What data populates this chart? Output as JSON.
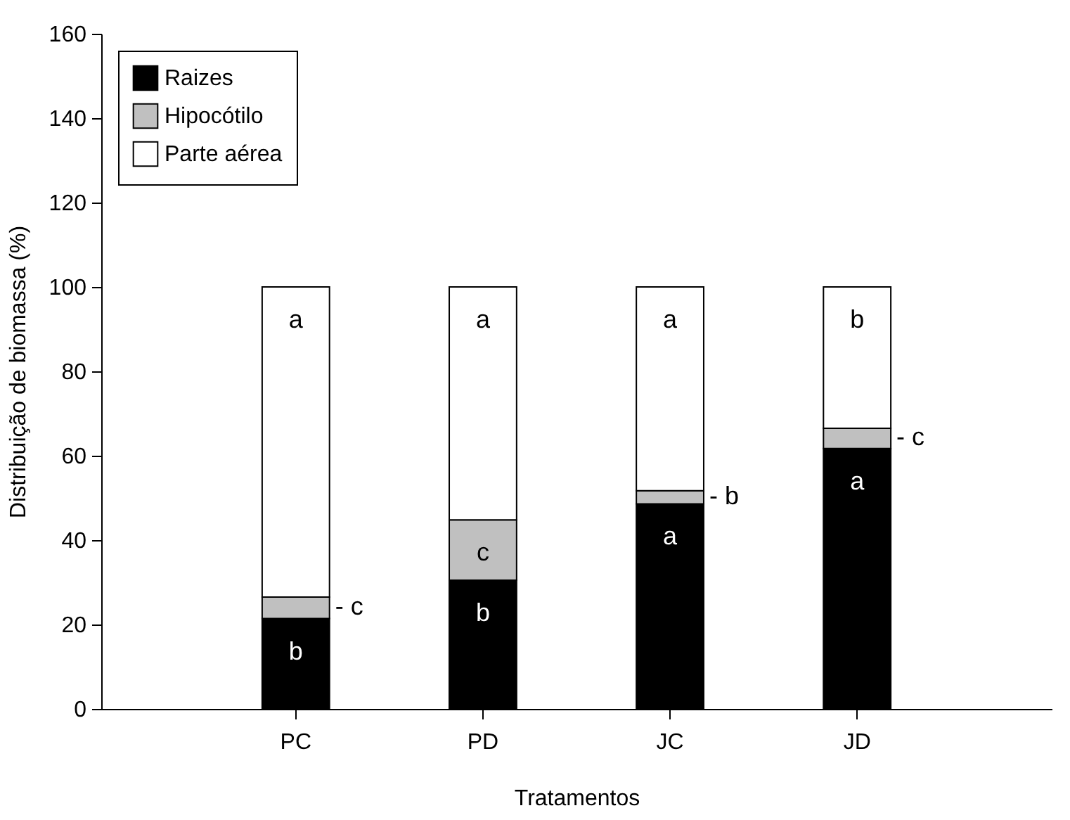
{
  "chart_data": {
    "type": "bar",
    "stacked": true,
    "xlabel": "Tratamentos",
    "ylabel": "Distribuição de biomassa (%)",
    "categories": [
      "PC",
      "PD",
      "JC",
      "JD"
    ],
    "series": [
      {
        "name": "Raizes",
        "color": "#000000",
        "values": [
          21.4,
          30.5,
          48.6,
          61.7
        ],
        "value_labels": [
          "b",
          "b",
          "a",
          "a"
        ]
      },
      {
        "name": "Hipocótilo",
        "color": "#c0c0c0",
        "values": [
          5.1,
          14.3,
          3.1,
          4.8
        ],
        "value_labels": [
          "- c",
          "c",
          "- b",
          "- c"
        ]
      },
      {
        "name": "Parte aérea",
        "color": "#ffffff",
        "values": [
          73.5,
          55.2,
          48.3,
          33.5
        ],
        "value_labels": [
          "a",
          "a",
          "a",
          "b"
        ]
      }
    ],
    "ylim": [
      0,
      160
    ],
    "yticks": [
      0,
      20,
      40,
      60,
      80,
      100,
      120,
      140,
      160
    ],
    "grid": false,
    "legend": "top left"
  }
}
